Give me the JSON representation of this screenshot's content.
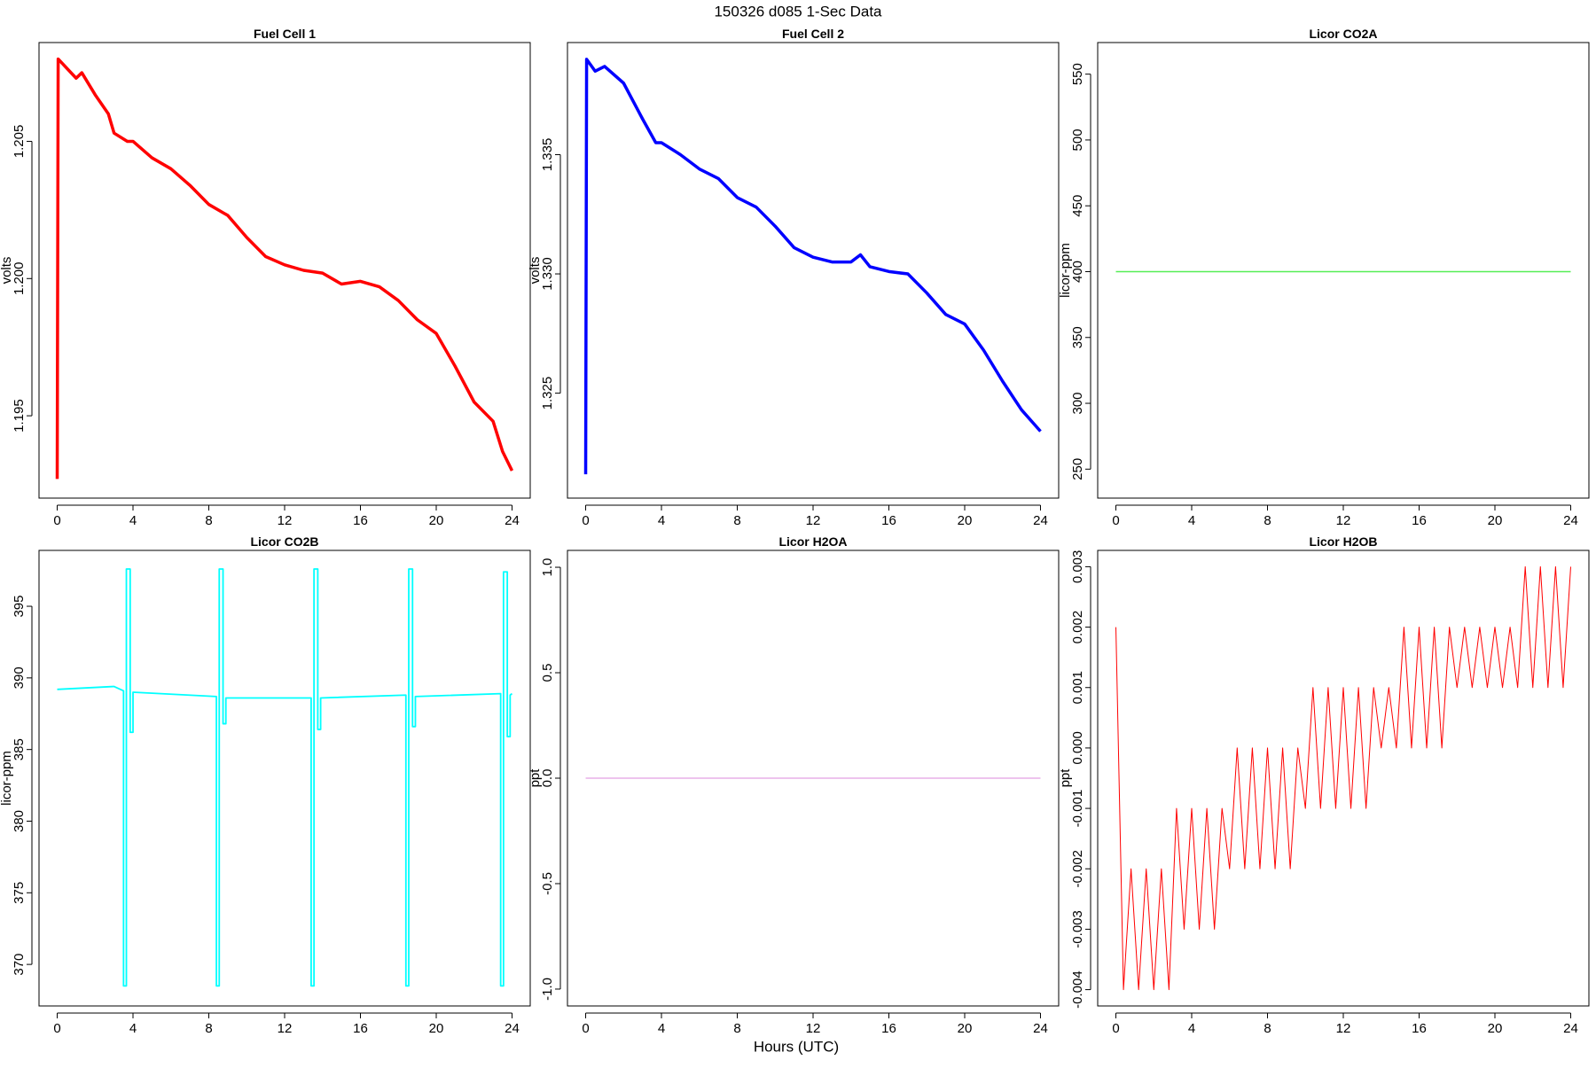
{
  "title": "150326   d085   1-Sec Data",
  "xlabel": "Hours (UTC)",
  "chart_data": [
    {
      "type": "line",
      "title": "Fuel Cell 1",
      "ylabel": "volts",
      "color": "#ff0000",
      "x": [
        0,
        0.05,
        1,
        1.3,
        2,
        2.7,
        3,
        3.7,
        4,
        5,
        6,
        7,
        8,
        9,
        10,
        11,
        12,
        13,
        14,
        15,
        16,
        17,
        18,
        19,
        20,
        21,
        22,
        23,
        23.5,
        24
      ],
      "values": [
        1.1927,
        1.208,
        1.2073,
        1.2075,
        1.2067,
        1.206,
        1.2053,
        1.205,
        1.205,
        1.2044,
        1.204,
        1.2034,
        1.2027,
        1.2023,
        1.2015,
        1.2008,
        1.2005,
        1.2003,
        1.2002,
        1.1998,
        1.1999,
        1.1997,
        1.1992,
        1.1985,
        1.198,
        1.1968,
        1.1955,
        1.1948,
        1.1937,
        1.193
      ],
      "xlim": [
        -0.96,
        24.96
      ],
      "ylim": [
        1.192,
        1.2086
      ],
      "xticks": [
        0,
        4,
        8,
        12,
        16,
        20,
        24
      ],
      "yticks": [
        1.195,
        {
          "value": 1.2,
          "label": "1.200"
        },
        1.205
      ]
    },
    {
      "type": "line",
      "title": "Fuel Cell 2",
      "ylabel": "volts",
      "color": "#0000ff",
      "x": [
        0,
        0.05,
        0.5,
        1,
        2,
        3,
        3.7,
        4,
        5,
        6,
        7,
        8,
        9,
        10,
        11,
        12,
        13,
        14,
        14.5,
        15,
        16,
        17,
        18,
        19,
        20,
        21,
        22,
        23,
        24
      ],
      "values": [
        1.3216,
        1.339,
        1.3385,
        1.3387,
        1.338,
        1.3365,
        1.3355,
        1.3355,
        1.335,
        1.3344,
        1.334,
        1.3332,
        1.3328,
        1.332,
        1.3311,
        1.3307,
        1.3305,
        1.3305,
        1.3308,
        1.3303,
        1.3301,
        1.33,
        1.3292,
        1.3283,
        1.3279,
        1.3268,
        1.3255,
        1.3243,
        1.3234
      ],
      "xlim": [
        -0.96,
        24.96
      ],
      "ylim": [
        1.3206,
        1.3397
      ],
      "xticks": [
        0,
        4,
        8,
        12,
        16,
        20,
        24
      ],
      "yticks": [
        1.325,
        {
          "value": 1.33,
          "label": "1.330"
        },
        1.335
      ]
    },
    {
      "type": "line",
      "title": "Licor CO2A",
      "ylabel": "licor-ppm",
      "color": "#55ee55",
      "x": [
        0,
        24
      ],
      "values": [
        400,
        400
      ],
      "xlim": [
        -0.96,
        24.96
      ],
      "ylim": [
        228,
        574
      ],
      "xticks": [
        0,
        4,
        8,
        12,
        16,
        20,
        24
      ],
      "yticks": [
        250,
        300,
        350,
        400,
        450,
        500,
        550
      ]
    },
    {
      "type": "line",
      "title": "Licor CO2B",
      "ylabel": "licor-ppm",
      "color": "#00ffff",
      "x": [
        0,
        3,
        3.5,
        3.5,
        3.65,
        3.65,
        3.85,
        3.85,
        4.0,
        4.0,
        8.4,
        8.4,
        8.55,
        8.55,
        8.75,
        8.75,
        8.9,
        8.9,
        13.4,
        13.4,
        13.55,
        13.55,
        13.75,
        13.75,
        13.9,
        13.9,
        18.4,
        18.4,
        18.55,
        18.55,
        18.75,
        18.75,
        18.9,
        18.9,
        23.4,
        23.4,
        23.55,
        23.55,
        23.75,
        23.75,
        23.9,
        23.9,
        24
      ],
      "values": [
        389.2,
        389.4,
        389.1,
        368.5,
        368.5,
        397.6,
        397.6,
        386.2,
        386.2,
        389.0,
        388.7,
        368.5,
        368.5,
        397.6,
        397.6,
        386.8,
        386.8,
        388.6,
        388.6,
        368.5,
        368.5,
        397.6,
        397.6,
        386.4,
        386.4,
        388.6,
        388.8,
        368.5,
        368.5,
        397.6,
        397.6,
        386.6,
        386.6,
        388.7,
        388.9,
        368.5,
        368.5,
        397.4,
        397.4,
        385.9,
        385.9,
        388.8,
        388.9
      ],
      "xlim": [
        -0.96,
        24.96
      ],
      "ylim": [
        367.1,
        398.9
      ],
      "xticks": [
        0,
        4,
        8,
        12,
        16,
        20,
        24
      ],
      "yticks": [
        370,
        375,
        380,
        385,
        390,
        395
      ]
    },
    {
      "type": "line",
      "title": "Licor H2OA",
      "ylabel": "ppt",
      "color": "#dd88dd",
      "x": [
        0,
        24
      ],
      "values": [
        0,
        0
      ],
      "xlim": [
        -0.96,
        24.96
      ],
      "ylim": [
        -1.08,
        1.08
      ],
      "xticks": [
        0,
        4,
        8,
        12,
        16,
        20,
        24
      ],
      "yticks": [
        {
          "value": -1,
          "label": "-1.0"
        },
        -0.5,
        {
          "value": 0,
          "label": "0.0"
        },
        0.5,
        {
          "value": 1,
          "label": "1.0"
        }
      ]
    },
    {
      "type": "line",
      "title": "Licor H2OB",
      "ylabel": "ppt",
      "color": "#ff0000",
      "x": [
        0,
        0.4,
        0.8,
        1.2,
        1.6,
        2,
        2.4,
        2.8,
        3.2,
        3.6,
        4,
        4.4,
        4.8,
        5.2,
        5.6,
        6,
        6.4,
        6.8,
        7.2,
        7.6,
        8,
        8.4,
        8.8,
        9.2,
        9.6,
        10,
        10.4,
        10.8,
        11.2,
        11.6,
        12,
        12.4,
        12.8,
        13.2,
        13.6,
        14,
        14.4,
        14.8,
        15.2,
        15.6,
        16,
        16.4,
        16.8,
        17.2,
        17.6,
        18,
        18.4,
        18.8,
        19.2,
        19.6,
        20,
        20.4,
        20.8,
        21.2,
        21.6,
        22,
        22.4,
        22.8,
        23.2,
        23.6,
        24
      ],
      "values": [
        0.002,
        -0.004,
        -0.002,
        -0.004,
        -0.002,
        -0.004,
        -0.002,
        -0.004,
        -0.001,
        -0.003,
        -0.001,
        -0.003,
        -0.001,
        -0.003,
        -0.001,
        -0.002,
        0,
        -0.002,
        0,
        -0.002,
        0,
        -0.002,
        0,
        -0.002,
        0,
        -0.001,
        0.001,
        -0.001,
        0.001,
        -0.001,
        0.001,
        -0.001,
        0.001,
        -0.001,
        0.001,
        0,
        0.001,
        0,
        0.002,
        0,
        0.002,
        0,
        0.002,
        0,
        0.002,
        0.001,
        0.002,
        0.001,
        0.002,
        0.001,
        0.002,
        0.001,
        0.002,
        0.001,
        0.003,
        0.001,
        0.003,
        0.001,
        0.003,
        0.001,
        0.003
      ],
      "xlim": [
        -0.96,
        24.96
      ],
      "ylim": [
        -0.00427,
        0.00327
      ],
      "xticks": [
        0,
        4,
        8,
        12,
        16,
        20,
        24
      ],
      "yticks": [
        -0.004,
        -0.003,
        -0.002,
        -0.001,
        {
          "value": 0,
          "label": "0.000"
        },
        0.001,
        0.002,
        0.003
      ]
    }
  ]
}
